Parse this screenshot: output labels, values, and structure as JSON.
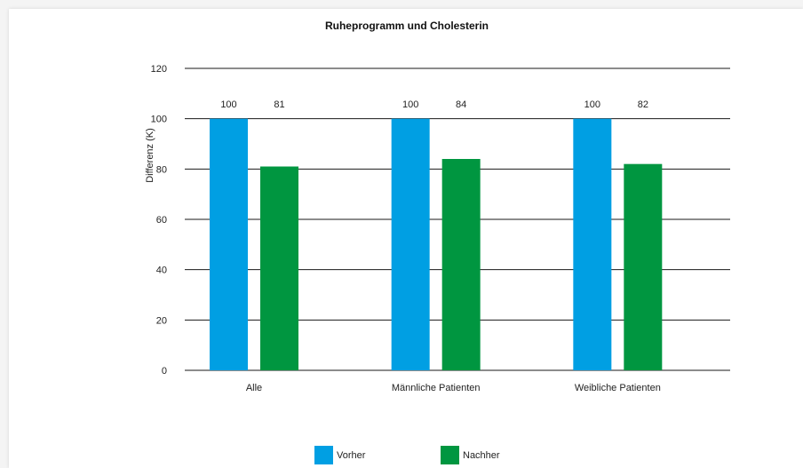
{
  "chart_data": {
    "type": "bar",
    "title": "Ruheprogramm und Cholesterin",
    "xlabel": "",
    "ylabel": "Differenz (K)",
    "ylim": [
      0,
      120
    ],
    "yticks": [
      "0",
      "20",
      "40",
      "60",
      "80",
      "100",
      "120"
    ],
    "categories": [
      "Alle",
      "Männliche Patienten",
      "Weibliche Patienten"
    ],
    "series": [
      {
        "name": "Vorher",
        "values": [
          100,
          100,
          100
        ],
        "color": "#009fe3"
      },
      {
        "name": "Nachher",
        "values": [
          81,
          84,
          82
        ],
        "color": "#009640"
      }
    ],
    "grid": true,
    "legend_position": "bottom"
  }
}
